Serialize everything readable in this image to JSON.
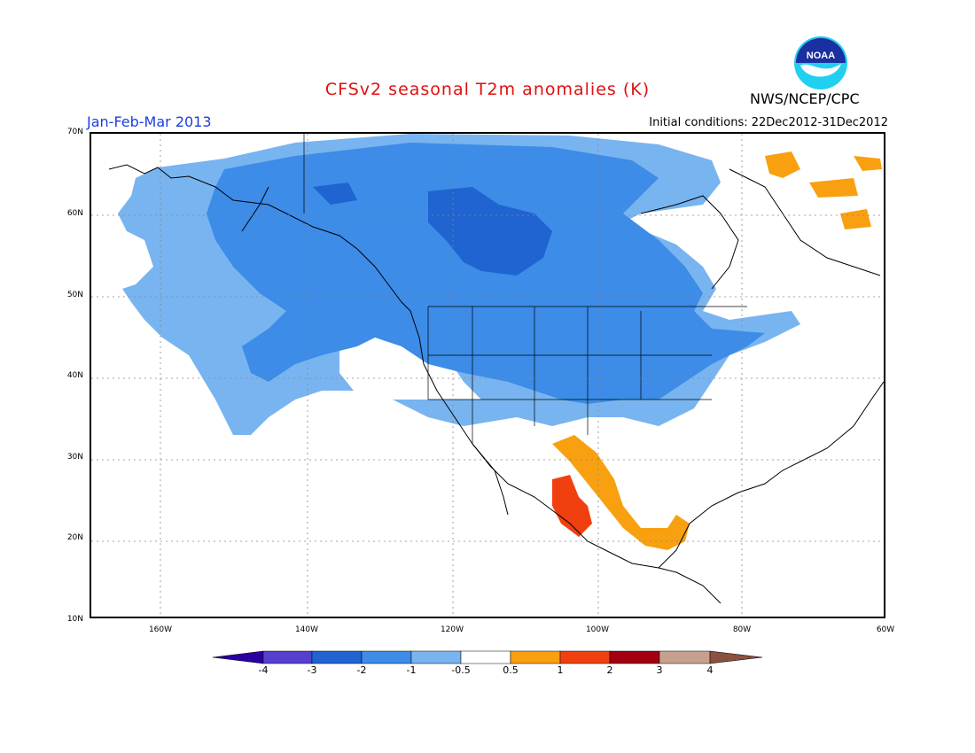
{
  "header": {
    "title": "CFSv2 seasonal T2m anomalies (K)",
    "period": "Jan-Feb-Mar 2013",
    "initial_conditions": "Initial conditions: 22Dec2012-31Dec2012",
    "agency": "NWS/NCEP/CPC",
    "logo_text": "NOAA"
  },
  "colors": {
    "title": "#e01010",
    "period": "#1a3fdd",
    "lt_minus4": "#2a00a0",
    "minus4_minus3": "#5540d0",
    "minus3_minus2": "#1f64d0",
    "minus2_minus1": "#3c8ce8",
    "minus1_minus05": "#78b4f0",
    "minus05_05": "#ffffff",
    "p05_1": "#f8a010",
    "p1_2": "#f04010",
    "p2_3": "#a00010",
    "p3_4": "#c8a090",
    "gt4": "#8a5040"
  },
  "map": {
    "lat_labels": [
      "70N",
      "60N",
      "50N",
      "40N",
      "30N",
      "20N",
      "10N"
    ],
    "lon_labels": [
      "160W",
      "140W",
      "120W",
      "100W",
      "80W",
      "60W"
    ]
  },
  "legend": {
    "ticks": [
      "-4",
      "-3",
      "-2",
      "-1",
      "-0.5",
      "0.5",
      "1",
      "2",
      "3",
      "4"
    ]
  }
}
